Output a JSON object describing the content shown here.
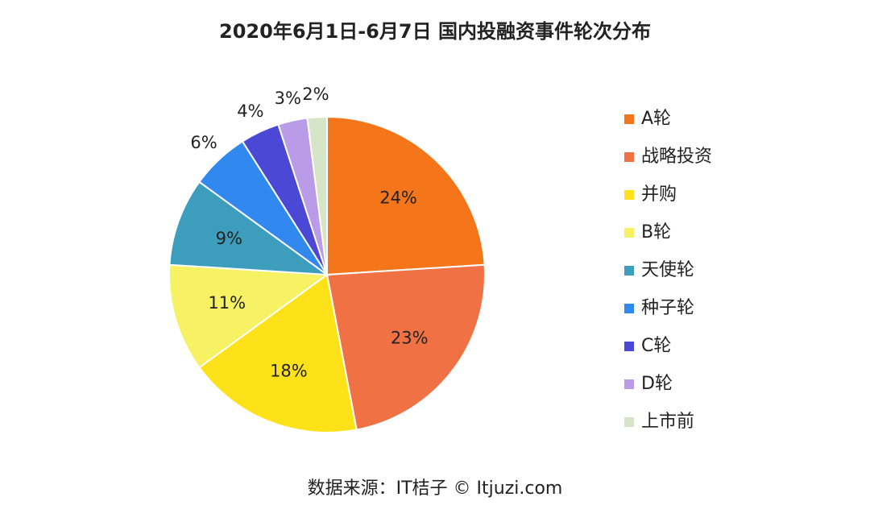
{
  "chart_data": {
    "type": "pie",
    "title": "2020年6月1日-6月7日 国内投融资事件轮次分布",
    "categories": [
      "A轮",
      "战略投资",
      "并购",
      "B轮",
      "天使轮",
      "种子轮",
      "C轮",
      "D轮",
      "上市前"
    ],
    "values": [
      24,
      23,
      18,
      11,
      9,
      6,
      4,
      3,
      2
    ],
    "value_labels": [
      "24%",
      "23%",
      "18%",
      "11%",
      "9%",
      "6%",
      "4%",
      "3%",
      "2%"
    ],
    "colors": [
      "#f5761a",
      "#f07244",
      "#fde21a",
      "#f7f264",
      "#3d9dbd",
      "#3189f0",
      "#4b48d6",
      "#b99be8",
      "#d6e5c9"
    ],
    "legend": "right",
    "source": "数据来源：IT桔子 © Itjuzi.com"
  }
}
